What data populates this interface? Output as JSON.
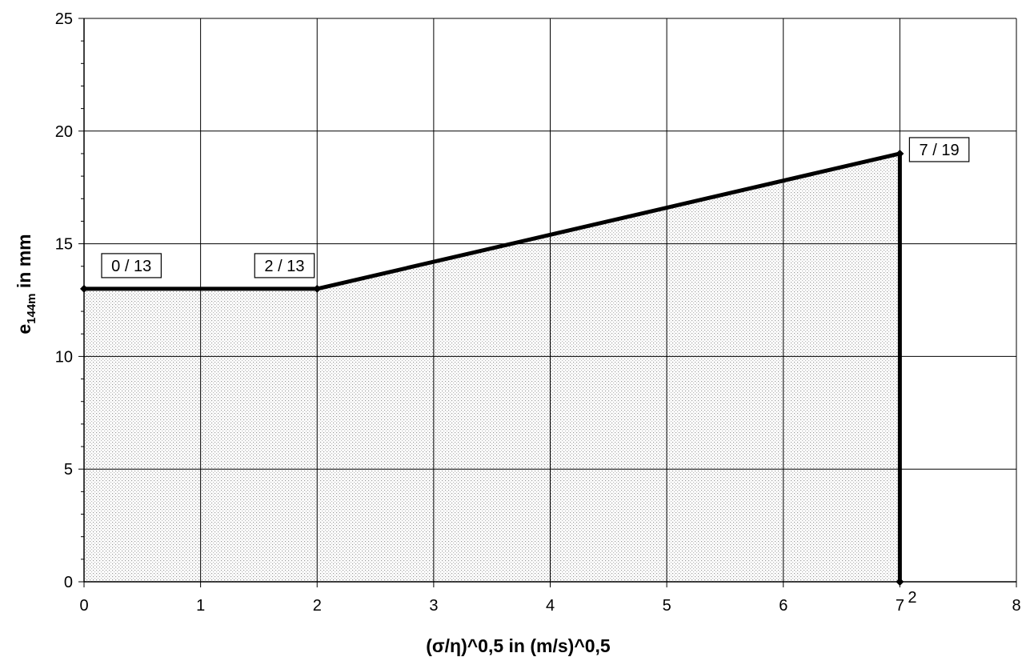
{
  "chart_data": {
    "type": "area",
    "x": [
      0,
      2,
      7
    ],
    "series": [
      {
        "values": [
          13,
          13,
          19
        ]
      }
    ],
    "xlabel": "(σ/η)^0,5 in (m/s)^0,5",
    "ylabel": {
      "base": "e",
      "subscript": "144m",
      "suffix": "in mm"
    },
    "xlim": [
      0,
      8
    ],
    "ylim": [
      0,
      25
    ],
    "xticks": [
      "0",
      "1",
      "2",
      "3",
      "4",
      "5",
      "6",
      "7",
      "8"
    ],
    "yticks": [
      "0",
      "5",
      "10",
      "15",
      "20",
      "25"
    ],
    "x_tick_superscript": {
      "tick_index": 7,
      "text": "2"
    },
    "vertical_line_x": 7,
    "data_labels": [
      "0 / 13",
      "2 / 13",
      "7 / 19"
    ],
    "grid": true,
    "fill": "dotted gray stipple under line",
    "line_color": "#000000"
  }
}
